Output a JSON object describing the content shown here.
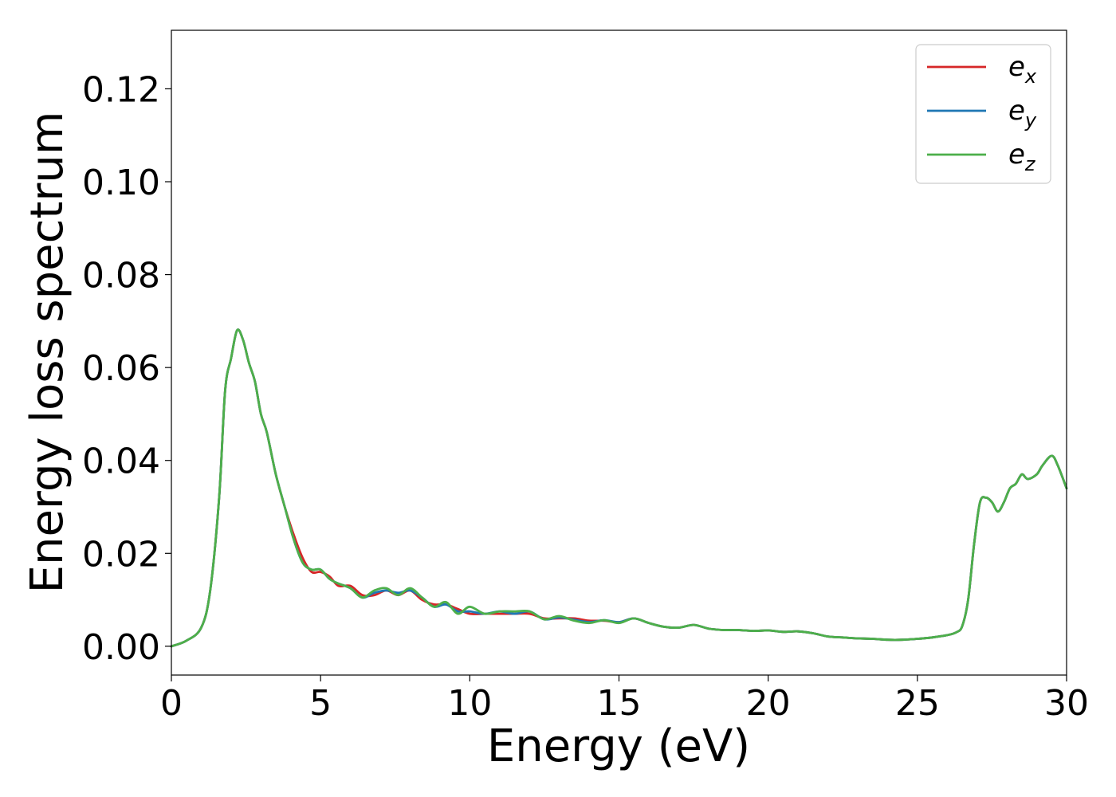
{
  "chart_data": {
    "type": "line",
    "title": "",
    "xlabel": "Energy (eV)",
    "ylabel": "Energy loss spectrum",
    "xlim": [
      0,
      30
    ],
    "ylim": [
      -0.0062,
      0.1326
    ],
    "x_ticks": [
      0,
      5,
      10,
      15,
      20,
      25,
      30
    ],
    "y_ticks": [
      0.0,
      0.02,
      0.04,
      0.06,
      0.08,
      0.1,
      0.12
    ],
    "x_tick_labels": [
      "0",
      "5",
      "10",
      "15",
      "20",
      "25",
      "30"
    ],
    "y_tick_labels": [
      "0.00",
      "0.02",
      "0.04",
      "0.06",
      "0.08",
      "0.10",
      "0.12"
    ],
    "grid": false,
    "legend_position": "top-right",
    "series": [
      {
        "name": "e_x",
        "legend_base": "e",
        "legend_sub": "x",
        "color": "#d62728",
        "x": [
          0,
          0.5,
          1.0,
          1.3,
          1.6,
          1.8,
          2.0,
          2.2,
          2.4,
          2.6,
          2.8,
          3.0,
          3.2,
          3.5,
          3.8,
          4.1,
          4.4,
          4.7,
          5.0,
          5.3,
          5.6,
          6.0,
          6.4,
          6.8,
          7.2,
          7.6,
          8.0,
          8.4,
          8.8,
          9.2,
          9.6,
          10.0,
          10.5,
          11.0,
          11.5,
          12.0,
          12.5,
          13.0,
          13.5,
          14.0,
          14.5,
          15.0,
          15.5,
          16.0,
          16.5,
          17.0,
          17.5,
          18.0,
          18.5,
          19.0,
          19.5,
          20.0,
          20.5,
          21.0,
          21.5,
          22.0,
          22.5,
          23.0,
          23.5,
          24.0,
          24.5,
          25.0,
          25.5,
          26.0,
          26.3,
          26.5,
          26.7,
          26.9,
          27.1,
          27.3,
          27.5,
          27.7,
          27.9,
          28.1,
          28.3,
          28.5,
          28.7,
          29.0,
          29.2,
          29.5,
          29.7,
          30.0
        ],
        "y": [
          0.0,
          0.0012,
          0.004,
          0.012,
          0.032,
          0.055,
          0.062,
          0.068,
          0.066,
          0.061,
          0.057,
          0.05,
          0.046,
          0.037,
          0.03,
          0.024,
          0.019,
          0.016,
          0.016,
          0.015,
          0.013,
          0.013,
          0.011,
          0.011,
          0.012,
          0.011,
          0.012,
          0.01,
          0.009,
          0.009,
          0.008,
          0.007,
          0.007,
          0.007,
          0.007,
          0.007,
          0.006,
          0.006,
          0.006,
          0.0055,
          0.0055,
          0.0052,
          0.006,
          0.005,
          0.0042,
          0.004,
          0.0046,
          0.0038,
          0.0035,
          0.0035,
          0.0033,
          0.0034,
          0.0031,
          0.0032,
          0.0028,
          0.0021,
          0.0019,
          0.0017,
          0.0016,
          0.0014,
          0.0014,
          0.0016,
          0.0019,
          0.0024,
          0.003,
          0.0043,
          0.01,
          0.022,
          0.031,
          0.032,
          0.031,
          0.029,
          0.031,
          0.034,
          0.035,
          0.037,
          0.036,
          0.037,
          0.039,
          0.041,
          0.039,
          0.034
        ]
      },
      {
        "name": "e_y",
        "legend_base": "e",
        "legend_sub": "y",
        "color": "#1f77b4",
        "x": [
          0,
          0.5,
          1.0,
          1.3,
          1.6,
          1.8,
          2.0,
          2.2,
          2.4,
          2.6,
          2.8,
          3.0,
          3.2,
          3.5,
          3.8,
          4.1,
          4.4,
          4.7,
          5.0,
          5.3,
          5.6,
          6.0,
          6.4,
          6.8,
          7.2,
          7.6,
          8.0,
          8.4,
          8.8,
          9.2,
          9.6,
          10.0,
          10.5,
          11.0,
          11.5,
          12.0,
          12.5,
          13.0,
          13.5,
          14.0,
          14.5,
          15.0,
          15.5,
          16.0,
          16.5,
          17.0,
          17.5,
          18.0,
          18.5,
          19.0,
          19.5,
          20.0,
          20.5,
          21.0,
          21.5,
          22.0,
          22.5,
          23.0,
          23.5,
          24.0,
          24.5,
          25.0,
          25.5,
          26.0,
          26.3,
          26.5,
          26.7,
          26.9,
          27.1,
          27.3,
          27.5,
          27.7,
          27.9,
          28.1,
          28.3,
          28.5,
          28.7,
          29.0,
          29.2,
          29.5,
          29.7,
          30.0
        ],
        "y": [
          0.0,
          0.0012,
          0.004,
          0.012,
          0.032,
          0.055,
          0.062,
          0.068,
          0.066,
          0.061,
          0.057,
          0.05,
          0.046,
          0.037,
          0.03,
          0.023,
          0.018,
          0.0165,
          0.0165,
          0.0145,
          0.0135,
          0.0125,
          0.0105,
          0.0115,
          0.012,
          0.0115,
          0.012,
          0.0105,
          0.0085,
          0.009,
          0.0075,
          0.0075,
          0.007,
          0.0075,
          0.007,
          0.0075,
          0.0058,
          0.0062,
          0.0057,
          0.0052,
          0.0056,
          0.0052,
          0.006,
          0.005,
          0.0042,
          0.004,
          0.0046,
          0.0038,
          0.0035,
          0.0035,
          0.0033,
          0.0034,
          0.0031,
          0.0032,
          0.0028,
          0.0021,
          0.0019,
          0.0017,
          0.0016,
          0.0014,
          0.0014,
          0.0016,
          0.0019,
          0.0024,
          0.003,
          0.0043,
          0.01,
          0.022,
          0.031,
          0.032,
          0.031,
          0.029,
          0.031,
          0.034,
          0.035,
          0.037,
          0.036,
          0.037,
          0.039,
          0.041,
          0.039,
          0.034
        ]
      },
      {
        "name": "e_z",
        "legend_base": "e",
        "legend_sub": "z",
        "color": "#4daf4a",
        "x": [
          0,
          0.5,
          1.0,
          1.3,
          1.6,
          1.8,
          2.0,
          2.2,
          2.4,
          2.6,
          2.8,
          3.0,
          3.2,
          3.5,
          3.8,
          4.1,
          4.4,
          4.7,
          5.0,
          5.3,
          5.6,
          6.0,
          6.4,
          6.8,
          7.2,
          7.6,
          8.0,
          8.4,
          8.8,
          9.2,
          9.6,
          10.0,
          10.5,
          11.0,
          11.5,
          12.0,
          12.5,
          13.0,
          13.5,
          14.0,
          14.5,
          15.0,
          15.5,
          16.0,
          16.5,
          17.0,
          17.5,
          18.0,
          18.5,
          19.0,
          19.5,
          20.0,
          20.5,
          21.0,
          21.5,
          22.0,
          22.5,
          23.0,
          23.5,
          24.0,
          24.5,
          25.0,
          25.5,
          26.0,
          26.3,
          26.5,
          26.7,
          26.9,
          27.1,
          27.3,
          27.5,
          27.7,
          27.9,
          28.1,
          28.3,
          28.5,
          28.7,
          29.0,
          29.2,
          29.5,
          29.7,
          30.0
        ],
        "y": [
          0.0,
          0.0012,
          0.004,
          0.012,
          0.032,
          0.055,
          0.062,
          0.068,
          0.066,
          0.061,
          0.057,
          0.05,
          0.046,
          0.037,
          0.03,
          0.023,
          0.018,
          0.0165,
          0.0165,
          0.0145,
          0.0135,
          0.0125,
          0.0105,
          0.012,
          0.0125,
          0.011,
          0.0125,
          0.0105,
          0.0085,
          0.0095,
          0.007,
          0.0085,
          0.007,
          0.0075,
          0.0075,
          0.0075,
          0.0058,
          0.0065,
          0.0055,
          0.005,
          0.0056,
          0.005,
          0.006,
          0.005,
          0.0042,
          0.004,
          0.0046,
          0.0038,
          0.0035,
          0.0035,
          0.0033,
          0.0034,
          0.0031,
          0.0032,
          0.0028,
          0.0021,
          0.0019,
          0.0017,
          0.0016,
          0.0014,
          0.0014,
          0.0016,
          0.0019,
          0.0024,
          0.003,
          0.0043,
          0.01,
          0.022,
          0.031,
          0.032,
          0.031,
          0.029,
          0.031,
          0.034,
          0.035,
          0.037,
          0.036,
          0.037,
          0.039,
          0.041,
          0.039,
          0.034
        ]
      }
    ]
  }
}
